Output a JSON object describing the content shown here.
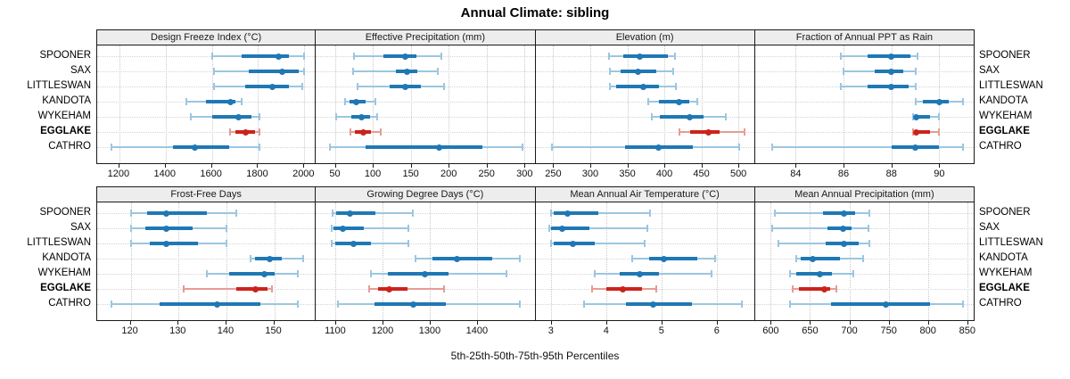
{
  "title": "Annual Climate: sibling",
  "caption": "5th-25th-50th-75th-95th Percentiles",
  "stations": [
    "SPOONER",
    "SAX",
    "LITTLESWAN",
    "KANDOTA",
    "WYKEHAM",
    "EGGLAKE",
    "CATHRO"
  ],
  "highlight_station": "EGGLAKE",
  "colors": {
    "series_dark": "#1F78B4",
    "series_light": "#9CC6E0",
    "highlight_dark": "#CB231B",
    "highlight_light": "#E69C96",
    "strip_bg": "#EDEDED",
    "panel_border": "#1A1A1A",
    "gridline": "#C9C9C9"
  },
  "chart_data": {
    "type": "interval-dotplot-grid",
    "legend_position": "none",
    "grid": "dotted",
    "percentile_labels": [
      "5th",
      "25th",
      "50th",
      "75th",
      "95th"
    ],
    "panels": [
      {
        "title": "Design Freeze Index (°C)",
        "row": 0,
        "col": 0,
        "xlim": [
          1104,
          2046
        ],
        "ticks": [
          1200,
          1400,
          1600,
          1800,
          2000
        ],
        "values": {
          "SPOONER": [
            1600,
            1730,
            1890,
            1935,
            2000
          ],
          "SAX": [
            1610,
            1760,
            1905,
            1975,
            2000
          ],
          "LITTLESWAN": [
            1608,
            1745,
            1860,
            1935,
            1990
          ],
          "KANDOTA": [
            1490,
            1575,
            1680,
            1700,
            1730
          ],
          "WYKEHAM": [
            1510,
            1600,
            1715,
            1770,
            1805
          ],
          "EGGLAKE": [
            1680,
            1700,
            1745,
            1785,
            1805
          ],
          "CATHRO": [
            1165,
            1430,
            1525,
            1675,
            1805
          ]
        }
      },
      {
        "title": "Effective Precipitation (mm)",
        "row": 0,
        "col": 1,
        "xlim": [
          25,
          312
        ],
        "ticks": [
          50,
          100,
          150,
          200,
          250,
          300
        ],
        "values": {
          "SPOONER": [
            75,
            114,
            143,
            157,
            190
          ],
          "SAX": [
            74,
            130,
            145,
            159,
            186
          ],
          "LITTLESWAN": [
            80,
            122,
            143,
            163,
            194
          ],
          "KANDOTA": [
            64,
            69,
            78,
            90,
            104
          ],
          "WYKEHAM": [
            52,
            72,
            85,
            96,
            106
          ],
          "EGGLAKE": [
            70,
            76,
            87,
            98,
            110
          ],
          "CATHRO": [
            44,
            91,
            188,
            245,
            297
          ]
        }
      },
      {
        "title": "Elevation (m)",
        "row": 0,
        "col": 2,
        "xlim": [
          226,
          520
        ],
        "ticks": [
          250,
          300,
          350,
          400,
          450,
          500
        ],
        "values": {
          "SPOONER": [
            325,
            345,
            367,
            405,
            414
          ],
          "SAX": [
            326,
            341,
            364,
            389,
            412
          ],
          "LITTLESWAN": [
            327,
            335,
            372,
            393,
            415
          ],
          "KANDOTA": [
            378,
            393,
            420,
            434,
            444
          ],
          "WYKEHAM": [
            383,
            394,
            434,
            453,
            483
          ],
          "EGGLAKE": [
            420,
            435,
            460,
            474,
            508
          ],
          "CATHRO": [
            248,
            347,
            392,
            439,
            501
          ]
        }
      },
      {
        "title": "Fraction of Annual PPT as Rain",
        "row": 0,
        "col": 3,
        "xlim": [
          82.3,
          91.4
        ],
        "ticks": [
          84,
          86,
          88,
          90
        ],
        "values": {
          "SPOONER": [
            85.9,
            87.0,
            88.0,
            88.8,
            89.1
          ],
          "SAX": [
            86.0,
            87.3,
            88.0,
            88.5,
            89.0
          ],
          "LITTLESWAN": [
            85.9,
            87.0,
            88.0,
            88.7,
            89.0
          ],
          "KANDOTA": [
            89.0,
            89.3,
            90.0,
            90.4,
            91.0
          ],
          "WYKEHAM": [
            88.9,
            89.0,
            89.05,
            89.6,
            90.0
          ],
          "EGGLAKE": [
            88.9,
            89.0,
            89.05,
            89.6,
            90.0
          ],
          "CATHRO": [
            83.0,
            88.0,
            89.0,
            90.0,
            91.0
          ]
        }
      },
      {
        "title": "Frost-Free Days",
        "row": 1,
        "col": 0,
        "xlim": [
          113,
          158.5
        ],
        "ticks": [
          120,
          130,
          140,
          150
        ],
        "values": {
          "SPOONER": [
            120,
            123.5,
            127.5,
            136,
            142
          ],
          "SAX": [
            120,
            123,
            127.5,
            133,
            140
          ],
          "LITTLESWAN": [
            120,
            124,
            127.5,
            134,
            140
          ],
          "KANDOTA": [
            145,
            146,
            149,
            151.5,
            156
          ],
          "WYKEHAM": [
            136,
            140.5,
            148,
            150,
            155
          ],
          "EGGLAKE": [
            131,
            142,
            146,
            148.5,
            149.5
          ],
          "CATHRO": [
            116,
            126,
            138,
            147,
            155
          ]
        }
      },
      {
        "title": "Growing Degree Days (°C)",
        "row": 1,
        "col": 1,
        "xlim": [
          1059,
          1520
        ],
        "ticks": [
          1100,
          1200,
          1300,
          1400
        ],
        "values": {
          "SPOONER": [
            1094,
            1101,
            1131,
            1185,
            1264
          ],
          "SAX": [
            1092,
            1097,
            1117,
            1160,
            1255
          ],
          "LITTLESWAN": [
            1092,
            1100,
            1138,
            1175,
            1254
          ],
          "KANDOTA": [
            1270,
            1306,
            1358,
            1432,
            1490
          ],
          "WYKEHAM": [
            1175,
            1212,
            1290,
            1340,
            1462
          ],
          "EGGLAKE": [
            1172,
            1190,
            1215,
            1253,
            1330
          ],
          "CATHRO": [
            1106,
            1184,
            1265,
            1335,
            1490
          ]
        }
      },
      {
        "title": "Mean Annual Air Temperature (°C)",
        "row": 1,
        "col": 2,
        "xlim": [
          2.72,
          6.66
        ],
        "ticks": [
          3,
          4,
          5,
          6
        ],
        "values": {
          "SPOONER": [
            3.0,
            3.05,
            3.3,
            3.85,
            4.8
          ],
          "SAX": [
            2.97,
            3.0,
            3.2,
            3.7,
            4.75
          ],
          "LITTLESWAN": [
            3.0,
            3.05,
            3.4,
            3.8,
            4.7
          ],
          "KANDOTA": [
            4.47,
            4.77,
            5.05,
            5.65,
            5.97
          ],
          "WYKEHAM": [
            3.8,
            4.25,
            4.6,
            4.95,
            5.9
          ],
          "EGGLAKE": [
            3.75,
            4.0,
            4.3,
            4.65,
            4.9
          ],
          "CATHRO": [
            3.6,
            4.35,
            4.85,
            5.55,
            6.45
          ]
        }
      },
      {
        "title": "Mean Annual Precipitation (mm)",
        "row": 1,
        "col": 3,
        "xlim": [
          580,
          857
        ],
        "ticks": [
          600,
          650,
          700,
          750,
          800,
          850
        ],
        "values": {
          "SPOONER": [
            605,
            667,
            693,
            707,
            725
          ],
          "SAX": [
            602,
            672,
            692,
            703,
            724
          ],
          "LITTLESWAN": [
            610,
            670,
            693,
            712,
            726
          ],
          "KANDOTA": [
            633,
            638,
            653,
            688,
            718
          ],
          "WYKEHAM": [
            624,
            632,
            663,
            678,
            705
          ],
          "EGGLAKE": [
            628,
            636,
            668,
            675,
            684
          ],
          "CATHRO": [
            624,
            677,
            746,
            803,
            845
          ]
        }
      }
    ]
  }
}
